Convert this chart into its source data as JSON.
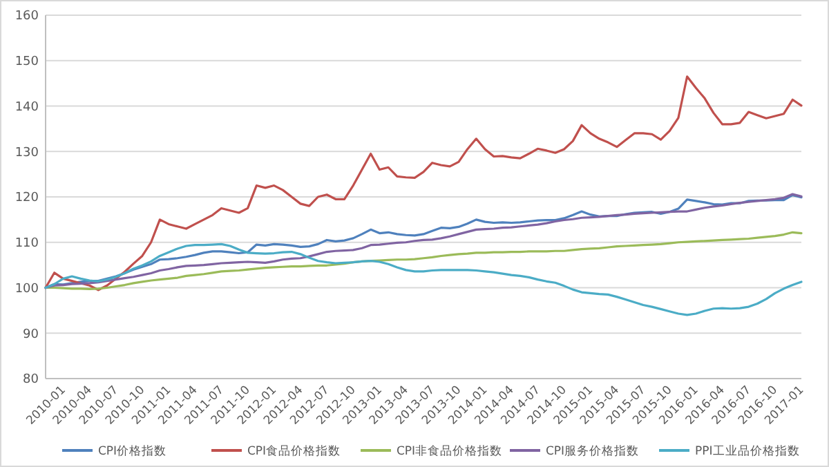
{
  "chart_data": {
    "type": "line",
    "categories": [
      "2010-01",
      null,
      null,
      "2010-04",
      null,
      null,
      "2010-07",
      null,
      null,
      "2010-10",
      null,
      null,
      "2011-01",
      null,
      null,
      "2011-04",
      null,
      null,
      "2011-07",
      null,
      null,
      "2011-10",
      null,
      null,
      "2012-01",
      null,
      null,
      "2012-04",
      null,
      null,
      "2012-07",
      null,
      null,
      "2012-10",
      null,
      null,
      "2013-01",
      null,
      null,
      "2013-04",
      null,
      null,
      "2013-07",
      null,
      null,
      "2013-10",
      null,
      null,
      "2014-01",
      null,
      null,
      "2014-04",
      null,
      null,
      "2014-07",
      null,
      null,
      "2014-10",
      null,
      null,
      "2015-01",
      null,
      null,
      "2015-04",
      null,
      null,
      "2015-07",
      null,
      null,
      "2015-10",
      null,
      null,
      "2016-01",
      null,
      null,
      "2016-04",
      null,
      null,
      "2016-07",
      null,
      null,
      "2016-10",
      null,
      null,
      "2017-01",
      null,
      null
    ],
    "series": [
      {
        "name": "CPI价格指数",
        "color": "#4f81bd",
        "values": [
          100,
          100.8,
          100.7,
          101,
          101.3,
          101.5,
          101.5,
          102,
          102.5,
          103.2,
          104,
          104.6,
          105.2,
          106.2,
          106.3,
          106.5,
          106.8,
          107.2,
          107.7,
          108,
          108,
          107.8,
          107.6,
          107.8,
          109.5,
          109.3,
          109.6,
          109.5,
          109.3,
          109,
          109.1,
          109.6,
          110.5,
          110.2,
          110.4,
          110.9,
          111.8,
          112.8,
          112,
          112.2,
          111.8,
          111.6,
          111.5,
          111.8,
          112.5,
          113.2,
          113.1,
          113.4,
          114.1,
          115,
          114.5,
          114.3,
          114.4,
          114.3,
          114.4,
          114.6,
          114.8,
          114.9,
          114.9,
          115.3,
          116,
          116.8,
          116.1,
          115.7,
          115.8,
          115.8,
          116.2,
          116.5,
          116.6,
          116.7,
          116.3,
          116.7,
          117.4,
          119.4,
          119.1,
          118.8,
          118.4,
          118.3,
          118.6,
          118.6,
          119.1,
          119.2,
          119.2,
          119.3,
          119.3,
          120.4,
          119.9
        ]
      },
      {
        "name": "CPI食品价格指数",
        "color": "#c0504d",
        "values": [
          100,
          103.3,
          102,
          101.5,
          101,
          100.5,
          99.5,
          100.5,
          102,
          103.5,
          105.3,
          107,
          110,
          115,
          114,
          113.5,
          113,
          114,
          115,
          116,
          117.5,
          117,
          116.5,
          117.5,
          122.5,
          122,
          122.5,
          121.5,
          120,
          118.5,
          118,
          120,
          120.5,
          119.5,
          119.5,
          122.5,
          126,
          129.5,
          126,
          126.5,
          124.5,
          124.3,
          124.2,
          125.5,
          127.5,
          127,
          126.7,
          127.7,
          130.5,
          132.8,
          130.5,
          128.9,
          129,
          128.7,
          128.5,
          129.5,
          130.6,
          130.2,
          129.7,
          130.5,
          132.3,
          135.8,
          134,
          132.8,
          132,
          131,
          132.5,
          134,
          134,
          133.8,
          132.6,
          134.5,
          137.4,
          146.5,
          144,
          141.7,
          138.5,
          136,
          136,
          136.3,
          138.7,
          138,
          137.3,
          137.8,
          138.3,
          141.4,
          140.1
        ]
      },
      {
        "name": "CPI非食品价格指数",
        "color": "#9bbb59",
        "values": [
          100,
          100,
          99.9,
          99.8,
          99.8,
          99.7,
          99.8,
          100,
          100.3,
          100.6,
          101,
          101.3,
          101.6,
          101.8,
          102,
          102.2,
          102.6,
          102.8,
          103,
          103.3,
          103.6,
          103.7,
          103.8,
          104,
          104.2,
          104.4,
          104.5,
          104.6,
          104.7,
          104.7,
          104.8,
          104.9,
          104.9,
          105.1,
          105.3,
          105.6,
          105.8,
          105.9,
          106,
          106.1,
          106.2,
          106.2,
          106.3,
          106.5,
          106.7,
          107,
          107.2,
          107.4,
          107.5,
          107.7,
          107.7,
          107.8,
          107.8,
          107.9,
          107.9,
          108,
          108,
          108,
          108.1,
          108.1,
          108.3,
          108.5,
          108.6,
          108.7,
          108.9,
          109.1,
          109.2,
          109.3,
          109.4,
          109.5,
          109.6,
          109.8,
          110,
          110.1,
          110.2,
          110.3,
          110.4,
          110.5,
          110.6,
          110.7,
          110.8,
          111,
          111.2,
          111.4,
          111.7,
          112.2,
          112
        ]
      },
      {
        "name": "CPI服务价格指数",
        "color": "#8064a2",
        "values": [
          100,
          100.5,
          100.6,
          100.8,
          100.9,
          101,
          101.2,
          101.5,
          101.8,
          102.1,
          102.4,
          102.8,
          103.2,
          103.8,
          104.1,
          104.5,
          104.8,
          104.9,
          105,
          105.2,
          105.4,
          105.5,
          105.6,
          105.7,
          105.6,
          105.5,
          105.8,
          106.2,
          106.4,
          106.5,
          106.9,
          107.4,
          107.9,
          108.1,
          108.2,
          108.3,
          108.7,
          109.4,
          109.5,
          109.7,
          109.9,
          110,
          110.3,
          110.5,
          110.6,
          110.9,
          111.3,
          111.8,
          112.3,
          112.8,
          112.9,
          113,
          113.2,
          113.3,
          113.5,
          113.7,
          113.9,
          114.2,
          114.6,
          114.9,
          115.1,
          115.4,
          115.5,
          115.6,
          115.8,
          116,
          116.1,
          116.3,
          116.4,
          116.5,
          116.6,
          116.7,
          116.8,
          116.8,
          117.2,
          117.6,
          117.9,
          118.1,
          118.4,
          118.7,
          118.9,
          119.1,
          119.3,
          119.5,
          119.8,
          120.6,
          120.1
        ]
      },
      {
        "name": "PPI工业品价格指数",
        "color": "#4bacc6",
        "values": [
          100,
          100.8,
          102,
          102.5,
          102,
          101.6,
          101.4,
          101.8,
          102.4,
          103.2,
          104.2,
          104.9,
          105.8,
          107,
          107.8,
          108.6,
          109.2,
          109.4,
          109.4,
          109.5,
          109.6,
          109.2,
          108.4,
          107.7,
          107.6,
          107.5,
          107.6,
          107.8,
          107.9,
          107.4,
          106.6,
          105.9,
          105.6,
          105.4,
          105.5,
          105.6,
          105.8,
          105.9,
          105.7,
          105.2,
          104.5,
          103.9,
          103.6,
          103.6,
          103.8,
          103.9,
          103.9,
          103.9,
          103.9,
          103.8,
          103.6,
          103.4,
          103.1,
          102.8,
          102.6,
          102.3,
          101.8,
          101.4,
          101.1,
          100.4,
          99.6,
          99,
          98.8,
          98.6,
          98.5,
          98,
          97.4,
          96.8,
          96.2,
          95.8,
          95.3,
          94.8,
          94.3,
          94,
          94.3,
          94.9,
          95.4,
          95.5,
          95.4,
          95.5,
          95.8,
          96.5,
          97.5,
          98.8,
          99.8,
          100.6,
          101.3
        ]
      }
    ],
    "ylim": [
      80,
      160
    ],
    "yticks": [
      80,
      90,
      100,
      110,
      120,
      130,
      140,
      150,
      160
    ],
    "grid": "y",
    "legend": "bottom"
  }
}
